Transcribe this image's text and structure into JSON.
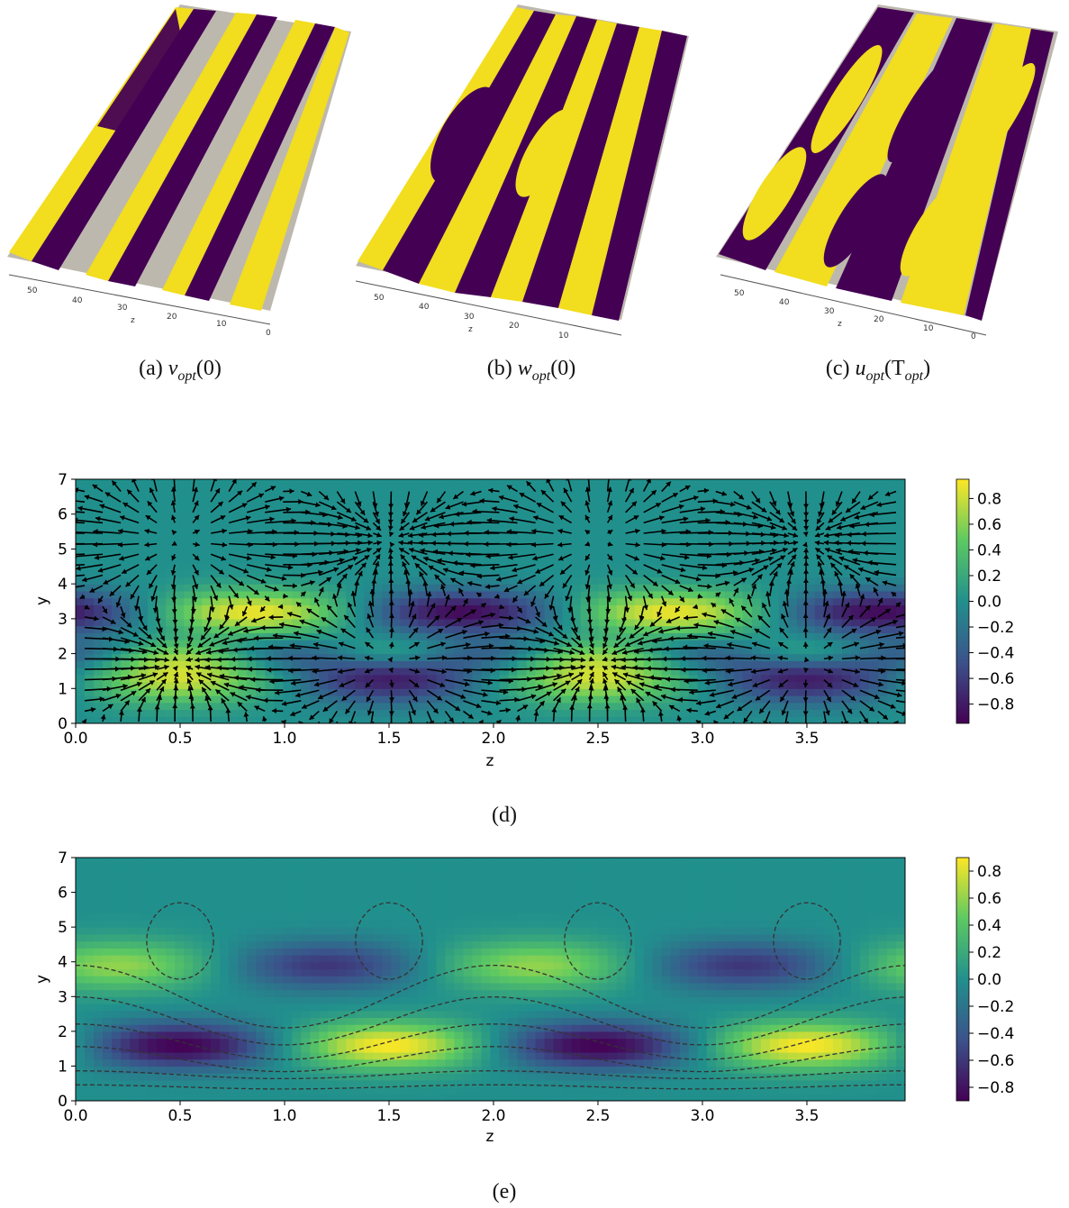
{
  "panels_3d": [
    {
      "id": "a",
      "caption_label": "(a)",
      "caption_var": "v",
      "caption_sub": "opt",
      "caption_arg": "(0)",
      "z_ticks": [
        "50",
        "40",
        "30",
        "20",
        "10",
        "0"
      ],
      "z_label": "z"
    },
    {
      "id": "b",
      "caption_label": "(b)",
      "caption_var": "w",
      "caption_sub": "opt",
      "caption_arg": "(0)",
      "z_ticks": [
        "50",
        "40",
        "30",
        "20",
        "10"
      ],
      "z_label": "z"
    },
    {
      "id": "c",
      "caption_label": "(c)",
      "caption_var": "u",
      "caption_sub": "opt",
      "caption_arg_pre": "(T",
      "caption_arg_sub": "opt",
      "caption_arg_post": ")",
      "z_ticks": [
        "50",
        "40",
        "30",
        "20",
        "10",
        "0"
      ],
      "z_label": "z"
    }
  ],
  "colors": {
    "purple": "#440154",
    "yellow": "#f2dd1e",
    "gray": "#bdb8ae",
    "teal": "#21908d"
  },
  "chart_data": [
    {
      "id": "d",
      "type": "heatmap",
      "caption": "(d)",
      "xlabel": "z",
      "ylabel": "y",
      "xlim": [
        0,
        3.97
      ],
      "ylim": [
        0,
        7
      ],
      "x_ticks": [
        "0.0",
        "0.5",
        "1.0",
        "1.5",
        "2.0",
        "2.5",
        "3.0",
        "3.5"
      ],
      "y_ticks": [
        "0",
        "1",
        "2",
        "3",
        "4",
        "5",
        "6",
        "7"
      ],
      "colorbar_ticks": [
        "0.8",
        "0.6",
        "0.4",
        "0.2",
        "0.0",
        "−0.2",
        "−0.4",
        "−0.6",
        "−0.8"
      ],
      "colorbar_range": [
        -0.95,
        0.95
      ],
      "overlay": "quiver"
    },
    {
      "id": "e",
      "type": "heatmap",
      "caption": "(e)",
      "xlabel": "z",
      "ylabel": "y",
      "xlim": [
        0,
        3.97
      ],
      "ylim": [
        0,
        7
      ],
      "x_ticks": [
        "0.0",
        "0.5",
        "1.0",
        "1.5",
        "2.0",
        "2.5",
        "3.0",
        "3.5"
      ],
      "y_ticks": [
        "0",
        "1",
        "2",
        "3",
        "4",
        "5",
        "6",
        "7"
      ],
      "colorbar_ticks": [
        "0.8",
        "0.6",
        "0.4",
        "0.2",
        "0.0",
        "−0.2",
        "−0.4",
        "−0.6",
        "−0.8"
      ],
      "colorbar_range": [
        -0.9,
        0.9
      ],
      "overlay": "dashed-contours"
    }
  ]
}
